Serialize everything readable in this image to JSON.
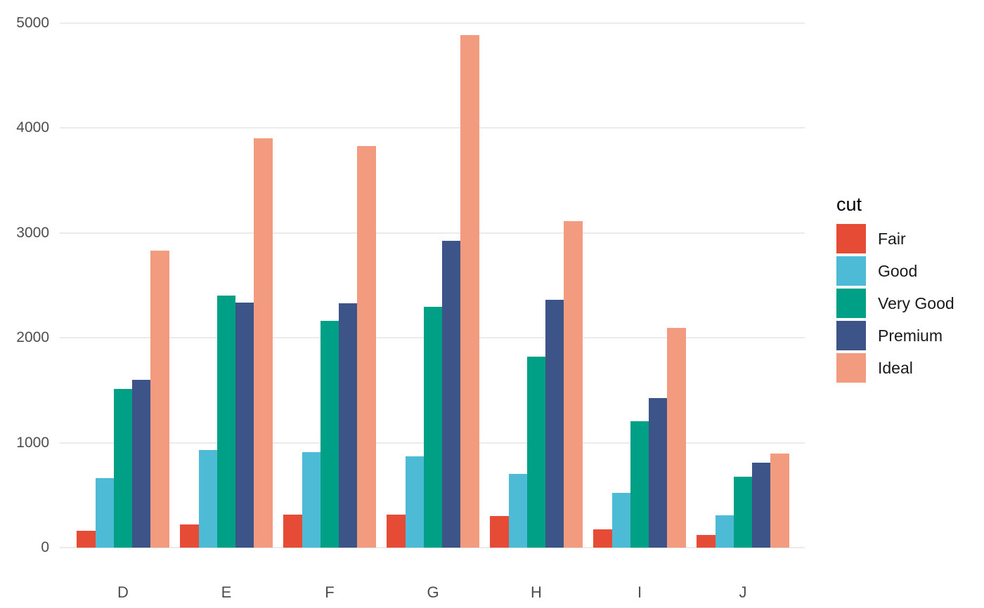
{
  "chart_data": {
    "type": "bar",
    "title": "",
    "xlabel": "",
    "ylabel": "",
    "categories": [
      "D",
      "E",
      "F",
      "G",
      "H",
      "I",
      "J"
    ],
    "series": [
      {
        "name": "Fair",
        "color": "#E64B35",
        "values": [
          163,
          224,
          312,
          314,
          303,
          175,
          119
        ]
      },
      {
        "name": "Good",
        "color": "#4DBBD5",
        "values": [
          662,
          933,
          909,
          871,
          702,
          522,
          307
        ]
      },
      {
        "name": "Very Good",
        "color": "#00A087",
        "values": [
          1513,
          2400,
          2164,
          2299,
          1824,
          1204,
          678
        ]
      },
      {
        "name": "Premium",
        "color": "#3C5488",
        "values": [
          1603,
          2337,
          2331,
          2924,
          2360,
          1428,
          808
        ]
      },
      {
        "name": "Ideal",
        "color": "#F39B7F",
        "values": [
          2834,
          3903,
          3826,
          4884,
          3115,
          2093,
          896
        ]
      }
    ],
    "ylim": [
      0,
      5000
    ],
    "yticks": [
      0,
      1000,
      2000,
      3000,
      4000,
      5000
    ],
    "grid": "horizontal-major-only",
    "legend": {
      "title": "cut",
      "position": "right"
    }
  },
  "colors": {
    "background": "#FFFFFF",
    "gridline": "#EBEBEB",
    "axis_text": "#4D4D4D",
    "legend_text": "#1A1A1A"
  }
}
